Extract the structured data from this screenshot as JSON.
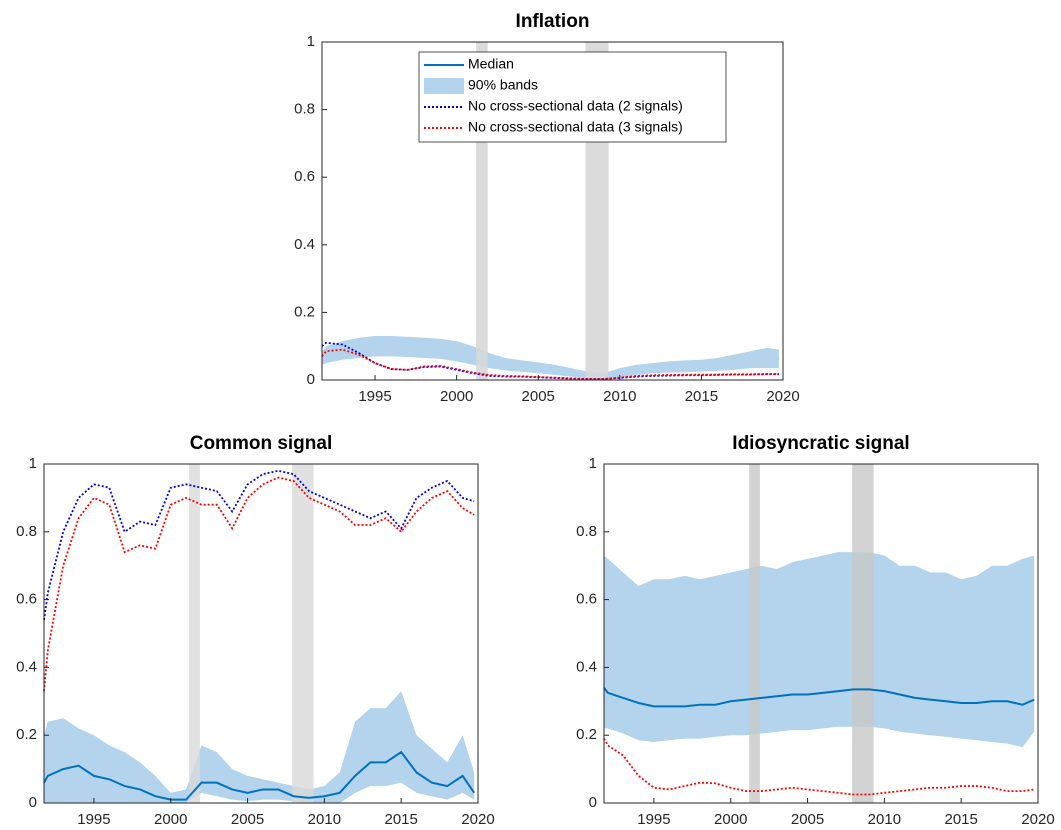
{
  "chart_data": [
    {
      "type": "line",
      "title": "Inflation",
      "legend": "north",
      "x": [
        1991.75,
        1992,
        1993,
        1994,
        1995,
        1996,
        1997,
        1998,
        1999,
        2000,
        2001,
        2002,
        2003,
        2004,
        2005,
        2006,
        2007,
        2008,
        2009,
        2010,
        2011,
        2012,
        2013,
        2014,
        2015,
        2016,
        2017,
        2018,
        2019,
        2019.75
      ],
      "xlim": [
        1991.75,
        2020
      ],
      "xticks": [
        1995,
        2000,
        2005,
        2010,
        2015,
        2020
      ],
      "ylim": [
        0,
        1
      ],
      "yticks": [
        0,
        0.2,
        0.4,
        0.6,
        0.8,
        1
      ],
      "shaded": [
        [
          2001.2,
          2001.9
        ],
        [
          2007.9,
          2009.3
        ]
      ],
      "shade_color": "#d9d9d9",
      "series": [
        {
          "name": "Median",
          "color": "#0072bd",
          "style": "solid",
          "values": [
            0.065,
            0.075,
            0.09,
            0.095,
            0.1,
            0.1,
            0.098,
            0.095,
            0.093,
            0.085,
            0.07,
            0.055,
            0.045,
            0.04,
            0.035,
            0.03,
            0.022,
            0.015,
            0.01,
            0.02,
            0.03,
            0.035,
            0.04,
            0.04,
            0.04,
            0.045,
            0.05,
            0.06,
            0.065,
            0.062
          ]
        },
        {
          "name": "90% bands",
          "color": "#b3d4ec",
          "style": "band",
          "lower": [
            0.045,
            0.05,
            0.06,
            0.065,
            0.07,
            0.07,
            0.068,
            0.065,
            0.063,
            0.055,
            0.045,
            0.035,
            0.028,
            0.024,
            0.02,
            0.015,
            0.01,
            0.005,
            0.003,
            0.008,
            0.015,
            0.02,
            0.022,
            0.023,
            0.025,
            0.027,
            0.03,
            0.035,
            0.035,
            0.035
          ],
          "upper": [
            0.085,
            0.1,
            0.115,
            0.125,
            0.13,
            0.13,
            0.128,
            0.125,
            0.122,
            0.115,
            0.1,
            0.08,
            0.065,
            0.058,
            0.052,
            0.045,
            0.035,
            0.025,
            0.02,
            0.035,
            0.045,
            0.05,
            0.055,
            0.058,
            0.06,
            0.065,
            0.075,
            0.085,
            0.095,
            0.09
          ]
        },
        {
          "name": "No cross-sectional data (2 signals)",
          "color": "#0000ee",
          "style": "dotted",
          "values": [
            0.1,
            0.11,
            0.105,
            0.08,
            0.05,
            0.032,
            0.03,
            0.038,
            0.04,
            0.03,
            0.02,
            0.012,
            0.01,
            0.01,
            0.008,
            0.006,
            0.004,
            0.003,
            0.003,
            0.006,
            0.01,
            0.012,
            0.013,
            0.014,
            0.014,
            0.015,
            0.016,
            0.016,
            0.017,
            0.017
          ]
        },
        {
          "name": "No cross-sectional data (3 signals)",
          "color": "#ff0000",
          "style": "dotted",
          "values": [
            0.07,
            0.085,
            0.09,
            0.075,
            0.05,
            0.033,
            0.03,
            0.04,
            0.042,
            0.032,
            0.022,
            0.015,
            0.012,
            0.011,
            0.009,
            0.007,
            0.005,
            0.003,
            0.003,
            0.007,
            0.012,
            0.014,
            0.015,
            0.016,
            0.016,
            0.016,
            0.017,
            0.017,
            0.018,
            0.018
          ]
        }
      ]
    },
    {
      "type": "line",
      "title": "Common signal",
      "x": [
        1991.75,
        1992,
        1993,
        1994,
        1995,
        1996,
        1997,
        1998,
        1999,
        2000,
        2001,
        2002,
        2003,
        2004,
        2005,
        2006,
        2007,
        2008,
        2009,
        2010,
        2011,
        2012,
        2013,
        2014,
        2015,
        2016,
        2017,
        2018,
        2019,
        2019.75
      ],
      "xlim": [
        1991.75,
        2020
      ],
      "xticks": [
        1995,
        2000,
        2005,
        2010,
        2015,
        2020
      ],
      "ylim": [
        0,
        1
      ],
      "yticks": [
        0,
        0.2,
        0.4,
        0.6,
        0.8,
        1
      ],
      "shaded": [
        [
          2001.2,
          2001.9
        ],
        [
          2007.9,
          2009.3
        ]
      ],
      "shade_color": "#d9d9d9",
      "series": [
        {
          "color": "#b3d4ec",
          "style": "band",
          "lower": [
            0,
            0,
            0,
            0,
            0,
            0,
            0,
            0,
            0,
            0,
            0,
            0.03,
            0.02,
            0.01,
            0.005,
            0.01,
            0.01,
            0.005,
            0,
            0,
            0,
            0.03,
            0.05,
            0.05,
            0.06,
            0.03,
            0.02,
            0.01,
            0.03,
            0.01
          ],
          "upper": [
            0.2,
            0.24,
            0.25,
            0.22,
            0.2,
            0.17,
            0.15,
            0.12,
            0.08,
            0.03,
            0.04,
            0.17,
            0.15,
            0.1,
            0.08,
            0.07,
            0.06,
            0.05,
            0.04,
            0.05,
            0.09,
            0.24,
            0.28,
            0.28,
            0.33,
            0.2,
            0.16,
            0.12,
            0.2,
            0.09
          ]
        },
        {
          "color": "#0072bd",
          "style": "solid",
          "values": [
            0.06,
            0.08,
            0.1,
            0.11,
            0.08,
            0.07,
            0.05,
            0.04,
            0.02,
            0.01,
            0.01,
            0.06,
            0.06,
            0.04,
            0.03,
            0.04,
            0.04,
            0.02,
            0.015,
            0.02,
            0.03,
            0.08,
            0.12,
            0.12,
            0.15,
            0.09,
            0.06,
            0.05,
            0.08,
            0.03
          ]
        },
        {
          "color": "#0000ee",
          "style": "dotted",
          "values": [
            0.54,
            0.62,
            0.8,
            0.9,
            0.94,
            0.93,
            0.8,
            0.83,
            0.82,
            0.93,
            0.94,
            0.93,
            0.92,
            0.86,
            0.94,
            0.97,
            0.98,
            0.97,
            0.92,
            0.9,
            0.88,
            0.86,
            0.84,
            0.86,
            0.81,
            0.9,
            0.93,
            0.95,
            0.9,
            0.89
          ]
        },
        {
          "color": "#ff0000",
          "style": "dotted",
          "values": [
            0.33,
            0.45,
            0.7,
            0.84,
            0.9,
            0.88,
            0.74,
            0.76,
            0.75,
            0.88,
            0.9,
            0.88,
            0.88,
            0.81,
            0.9,
            0.94,
            0.96,
            0.95,
            0.9,
            0.88,
            0.86,
            0.82,
            0.82,
            0.84,
            0.8,
            0.86,
            0.9,
            0.92,
            0.87,
            0.85
          ]
        }
      ]
    },
    {
      "type": "line",
      "title": "Idiosyncratic signal",
      "x": [
        1991.75,
        1992,
        1993,
        1994,
        1995,
        1996,
        1997,
        1998,
        1999,
        2000,
        2001,
        2002,
        2003,
        2004,
        2005,
        2006,
        2007,
        2008,
        2009,
        2010,
        2011,
        2012,
        2013,
        2014,
        2015,
        2016,
        2017,
        2018,
        2019,
        2019.75
      ],
      "xlim": [
        1991.75,
        2020
      ],
      "xticks": [
        1995,
        2000,
        2005,
        2010,
        2015,
        2020
      ],
      "ylim": [
        0,
        1
      ],
      "yticks": [
        0,
        0.2,
        0.4,
        0.6,
        0.8,
        1
      ],
      "shaded": [
        [
          2001.2,
          2001.9
        ],
        [
          2007.9,
          2009.3
        ]
      ],
      "shade_color": "#c8c8c8",
      "series": [
        {
          "color": "#b3d4ec",
          "style": "band",
          "lower": [
            0.22,
            0.22,
            0.205,
            0.185,
            0.18,
            0.185,
            0.19,
            0.19,
            0.195,
            0.2,
            0.2,
            0.205,
            0.21,
            0.215,
            0.215,
            0.22,
            0.225,
            0.225,
            0.225,
            0.22,
            0.21,
            0.205,
            0.2,
            0.195,
            0.19,
            0.185,
            0.18,
            0.175,
            0.165,
            0.21
          ],
          "upper": [
            0.73,
            0.72,
            0.68,
            0.64,
            0.66,
            0.66,
            0.67,
            0.66,
            0.67,
            0.68,
            0.69,
            0.7,
            0.69,
            0.71,
            0.72,
            0.73,
            0.74,
            0.74,
            0.74,
            0.73,
            0.7,
            0.7,
            0.68,
            0.68,
            0.66,
            0.67,
            0.7,
            0.7,
            0.72,
            0.73
          ]
        },
        {
          "color": "#0072bd",
          "style": "solid",
          "values": [
            0.34,
            0.325,
            0.31,
            0.295,
            0.285,
            0.285,
            0.285,
            0.29,
            0.29,
            0.3,
            0.305,
            0.31,
            0.315,
            0.32,
            0.32,
            0.325,
            0.33,
            0.335,
            0.335,
            0.33,
            0.32,
            0.31,
            0.305,
            0.3,
            0.295,
            0.295,
            0.3,
            0.3,
            0.29,
            0.305
          ]
        },
        {
          "color": "#ff0000",
          "style": "dotted",
          "values": [
            0.19,
            0.17,
            0.14,
            0.08,
            0.045,
            0.04,
            0.05,
            0.06,
            0.058,
            0.045,
            0.035,
            0.035,
            0.04,
            0.045,
            0.04,
            0.035,
            0.03,
            0.025,
            0.025,
            0.03,
            0.035,
            0.04,
            0.045,
            0.045,
            0.05,
            0.05,
            0.045,
            0.035,
            0.035,
            0.04
          ]
        }
      ]
    }
  ]
}
